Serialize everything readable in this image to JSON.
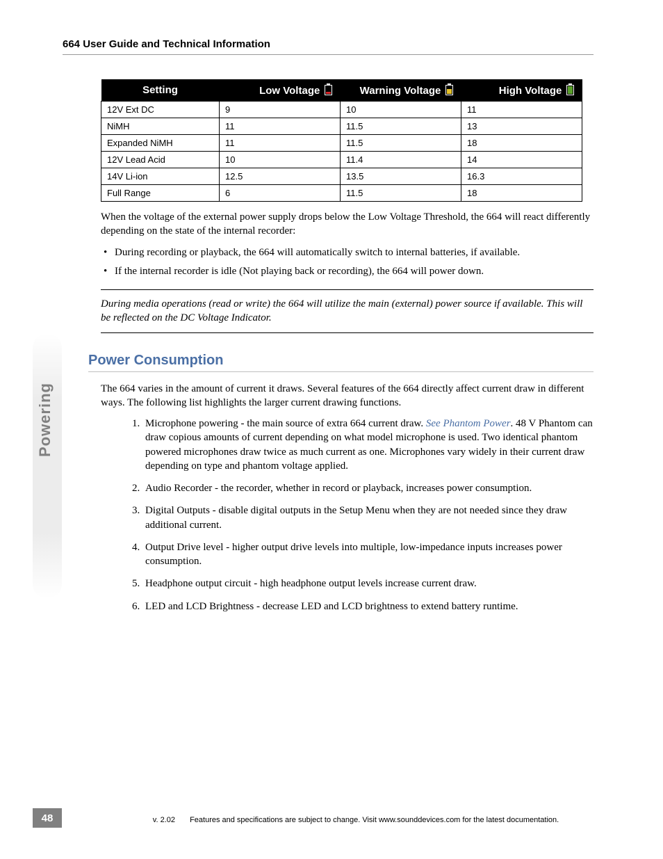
{
  "colors": {
    "heading_blue": "#4a6fa5",
    "tab_gray": "#808080",
    "rule_gray": "#bfbfbf",
    "text": "#000000",
    "bg": "#ffffff",
    "link": "#4a6fa5",
    "batt_red": "#d9252a",
    "batt_yellow": "#e6c229",
    "batt_green": "#5aa02c"
  },
  "header": {
    "title": "664 User Guide and Technical Information"
  },
  "voltage_table": {
    "columns": [
      "Setting",
      "Low Voltage",
      "Warning Voltage",
      "High Voltage"
    ],
    "icon_colors": [
      "",
      "#d9252a",
      "#e6c229",
      "#5aa02c"
    ],
    "rows": [
      [
        "12V Ext DC",
        "9",
        "10",
        "11"
      ],
      [
        "NiMH",
        "11",
        "11.5",
        "13"
      ],
      [
        "Expanded NiMH",
        "11",
        "11.5",
        "18"
      ],
      [
        "12V Lead Acid",
        "10",
        "11.4",
        "14"
      ],
      [
        "14V Li-ion",
        "12.5",
        "13.5",
        "16.3"
      ],
      [
        "Full Range",
        "6",
        "11.5",
        "18"
      ]
    ],
    "header_fontsize": 15,
    "cell_fontsize": 13
  },
  "paragraphs": {
    "p1": "When the voltage of the external power supply drops below the Low Voltage Threshold, the 664 will react differently depending on the state of the internal recorder:"
  },
  "bullets": [
    "During recording or playback, the 664 will automatically switch to internal batteries, if available.",
    "If the internal recorder is idle (Not playing back or recording), the 664 will power down."
  ],
  "note": "During media operations (read or write) the 664 will utilize the main (external) power source if available. This will be reflected on the DC Voltage Indicator.",
  "section": {
    "title": "Power Consumption",
    "intro": "The 664 varies in the amount of current it draws. Several features of the 664 directly affect current draw in different ways. The following list highlights the larger current drawing functions.",
    "items": [
      {
        "pre": "Microphone powering - the main source of extra 664 current draw. ",
        "link": "See Phantom Power",
        "post": ". 48 V Phantom can draw copious amounts of current depending on what model microphone is used. Two identical phantom powered microphones draw twice as much current as one. Microphones vary widely in their current draw depending on type and phantom voltage applied."
      },
      {
        "pre": "Audio Recorder - the recorder, whether in record or playback, increases power consumption.",
        "link": "",
        "post": ""
      },
      {
        "pre": "Digital Outputs - disable digital outputs in the Setup Menu when they are not needed since they draw additional current.",
        "link": "",
        "post": ""
      },
      {
        "pre": "Output Drive level - higher output drive levels into multiple, low-impedance inputs increases power consumption.",
        "link": "",
        "post": ""
      },
      {
        "pre": "Headphone output circuit - high headphone output levels increase current draw.",
        "link": "",
        "post": ""
      },
      {
        "pre": "LED and LCD Brightness - decrease LED and LCD brightness to extend battery runtime.",
        "link": "",
        "post": ""
      }
    ]
  },
  "side_tab": "Powering",
  "page_number": "48",
  "footer": {
    "version": "v. 2.02",
    "text": "Features and specifications are subject to change. Visit www.sounddevices.com for the latest documentation."
  }
}
